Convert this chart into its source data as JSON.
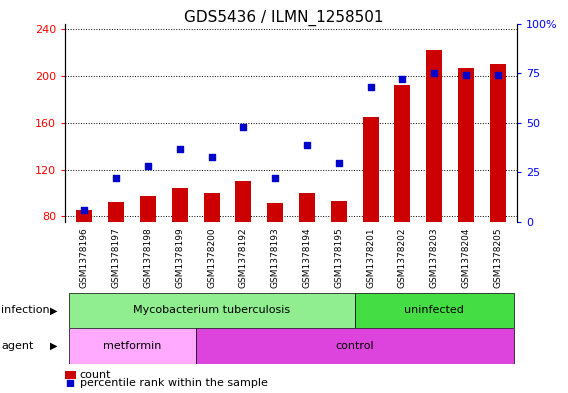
{
  "title": "GDS5436 / ILMN_1258501",
  "samples": [
    "GSM1378196",
    "GSM1378197",
    "GSM1378198",
    "GSM1378199",
    "GSM1378200",
    "GSM1378192",
    "GSM1378193",
    "GSM1378194",
    "GSM1378195",
    "GSM1378201",
    "GSM1378202",
    "GSM1378203",
    "GSM1378204",
    "GSM1378205"
  ],
  "counts": [
    85,
    92,
    97,
    104,
    100,
    110,
    91,
    100,
    93,
    165,
    192,
    222,
    207,
    210
  ],
  "percentiles": [
    6,
    22,
    28,
    37,
    33,
    48,
    22,
    39,
    30,
    68,
    72,
    75,
    74,
    74
  ],
  "ylim_left": [
    75,
    245
  ],
  "ylim_right": [
    0,
    100
  ],
  "yticks_left": [
    80,
    120,
    160,
    200,
    240
  ],
  "yticks_right": [
    0,
    25,
    50,
    75,
    100
  ],
  "infection_groups": [
    {
      "label": "Mycobacterium tuberculosis",
      "start": 0,
      "end": 9,
      "color": "#90ee90"
    },
    {
      "label": "uninfected",
      "start": 9,
      "end": 14,
      "color": "#44dd44"
    }
  ],
  "agent_groups": [
    {
      "label": "metformin",
      "start": 0,
      "end": 4,
      "color": "#ffaaff"
    },
    {
      "label": "control",
      "start": 4,
      "end": 14,
      "color": "#dd44dd"
    }
  ],
  "bar_color": "#cc0000",
  "dot_color": "#0000cc",
  "bar_width": 0.5,
  "background_color": "#ffffff",
  "plot_bg_color": "#ffffff",
  "xtick_bg_color": "#cccccc",
  "title_fontsize": 11,
  "tick_fontsize": 8,
  "label_fontsize": 9
}
